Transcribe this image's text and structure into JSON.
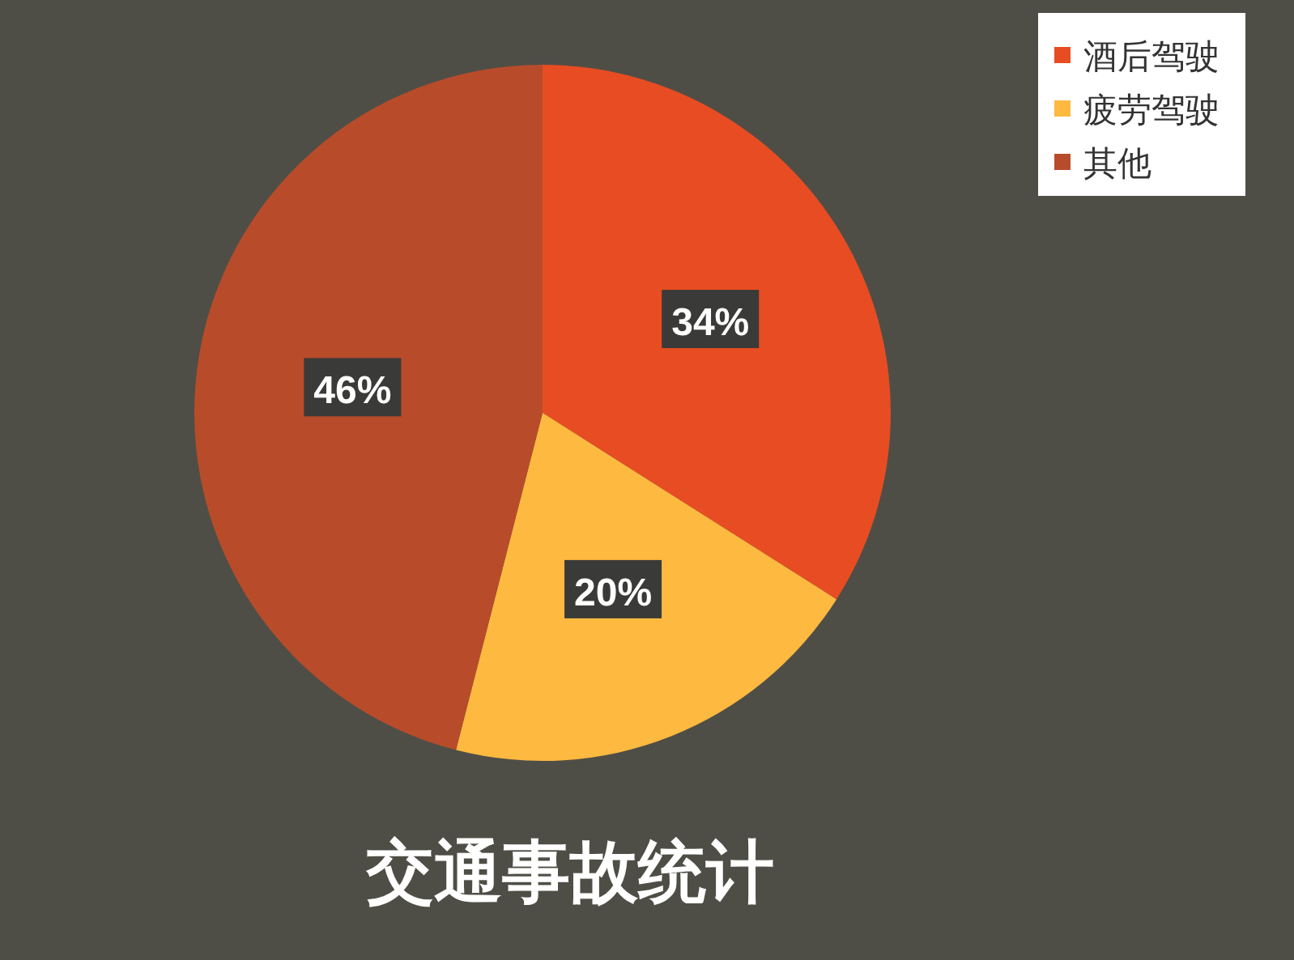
{
  "chart_data": {
    "type": "pie",
    "title": "交通事故统计",
    "categories": [
      "酒后驾驶",
      "疲劳驾驶",
      "其他"
    ],
    "values": [
      34,
      20,
      46
    ],
    "colors": [
      "#e84c22",
      "#fdb940",
      "#b84c2a"
    ],
    "legend": "top right",
    "value_labels": [
      "34%",
      "20%",
      "46%"
    ]
  }
}
